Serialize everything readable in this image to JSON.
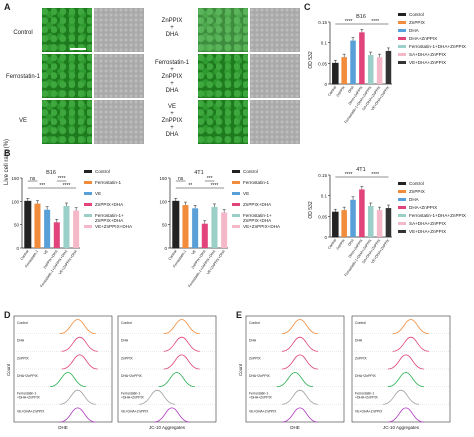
{
  "panels": {
    "A": "A",
    "B": "B",
    "C": "C",
    "D": "D",
    "E": "E"
  },
  "panelA": {
    "left_rows": [
      "Control",
      "Ferrostatin-1",
      "VE"
    ],
    "right_rows": [
      "ZnPPIX\n+\nDHA",
      "Ferrostatin-1\n+\nZnPPIX\n+\nDHA",
      "VE\n+\nZnPPIX\n+\nDHA"
    ]
  },
  "panelB": {
    "ylabel": "Live cell ratio (%)",
    "legend": [
      "Control",
      "Ferrostatin-1",
      "VE",
      "ZnPPIX+DHA",
      "Ferrostatin-1+\nZnPPIX+DHA",
      "VE+ZnPPIX+DHA"
    ],
    "colors": [
      "#222222",
      "#f08c3c",
      "#5aa0d8",
      "#e0447a",
      "#9ad0c8",
      "#f4b8c8"
    ],
    "stats_left": [
      "ns",
      "***",
      "****",
      "****"
    ],
    "stats_right": [
      "ns",
      "**",
      "***",
      "****"
    ]
  },
  "panelC": {
    "ylabel": "OD 532",
    "legend": [
      "Control",
      "ZnPPIX",
      "DHA",
      "DHA+ZnPPIX",
      "Ferrostatin-1+DHA+ZnPPIX",
      "SA+DHA+ZnPPIX",
      "VE+DHA+ZnPPIX"
    ],
    "colors": [
      "#222222",
      "#f08c3c",
      "#5aa0d8",
      "#e0447a",
      "#9ad0c8",
      "#f4b8c8",
      "#333333"
    ],
    "stats": [
      "****",
      "****"
    ]
  },
  "panelD": {
    "left_rows": [
      "Control",
      "DHA",
      "ZnPPIX",
      "DHA+ZnPPIX",
      "Ferrostatin-1\n+DHA+ZnPPIX",
      "VE+DHA+ZnPPIX"
    ],
    "left_xlabel": "DHE",
    "right_xlabel": "JC-10 Aggregates",
    "ylabel": "Count"
  },
  "panelE": {
    "left_rows": [
      "Control",
      "DHA",
      "ZnPPIX",
      "DHA+ZnPPIX",
      "Ferrostatin-1\n+DHA+ZnPPIX",
      "VE+DHA+ZnPPIX"
    ],
    "left_xlabel": "DHE",
    "right_xlabel": "JC-10 Aggregates",
    "ylabel": "Count"
  },
  "chart_data": [
    {
      "type": "bar",
      "title": "B16",
      "ylabel": "Live cell ratio (%)",
      "categories": [
        "Control",
        "Ferrostatin-1",
        "VE",
        "ZnPPIX+DHA",
        "Ferrostatin-1+ZnPPIX+DHA",
        "VE+ZnPPIX+DHA"
      ],
      "values": [
        100,
        95,
        82,
        55,
        90,
        80
      ],
      "ylim": [
        0,
        150
      ],
      "yticks": [
        0,
        50,
        100,
        150
      ]
    },
    {
      "type": "bar",
      "title": "4T1",
      "ylabel": "Live cell ratio (%)",
      "categories": [
        "Control",
        "Ferrostatin-1",
        "VE",
        "ZnPPIX+DHA",
        "Ferrostatin-1+ZnPPIX+DHA",
        "VE+ZnPPIX+DHA"
      ],
      "values": [
        100,
        92,
        85,
        52,
        88,
        76
      ],
      "ylim": [
        0,
        150
      ],
      "yticks": [
        0,
        50,
        100,
        150
      ]
    },
    {
      "type": "bar",
      "title": "B16",
      "ylabel": "OD 532",
      "categories": [
        "Control",
        "ZnPPIX",
        "DHA",
        "DHA+ZnPPIX",
        "Ferrostatin-1+DHA+ZnPPIX",
        "SA+DHA+ZnPPIX",
        "VE+DHA+ZnPPIX"
      ],
      "values": [
        0.05,
        0.065,
        0.105,
        0.125,
        0.07,
        0.065,
        0.08
      ],
      "ylim": [
        0,
        0.15
      ],
      "yticks": [
        0.0,
        0.05,
        0.1,
        0.15
      ]
    },
    {
      "type": "bar",
      "title": "4T1",
      "ylabel": "OD 532",
      "categories": [
        "Control",
        "ZnPPIX",
        "DHA",
        "DHA+ZnPPIX",
        "Ferrostatin-1+DHA+ZnPPIX",
        "SA+DHA+ZnPPIX",
        "VE+DHA+ZnPPIX"
      ],
      "values": [
        0.06,
        0.065,
        0.09,
        0.115,
        0.075,
        0.065,
        0.07
      ],
      "ylim": [
        0,
        0.15
      ],
      "yticks": [
        0.0,
        0.05,
        0.1,
        0.15
      ]
    }
  ]
}
